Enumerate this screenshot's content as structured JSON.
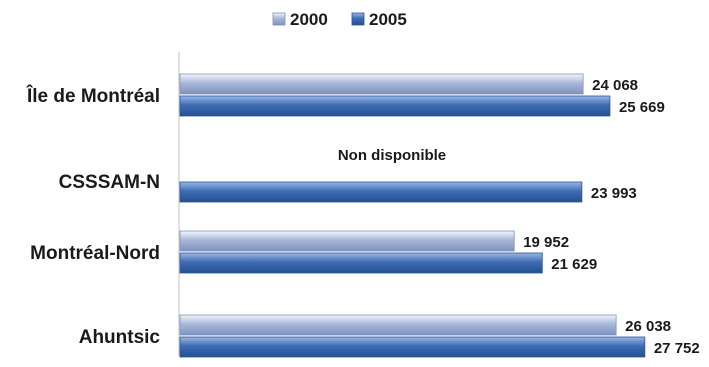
{
  "chart_data": {
    "type": "bar",
    "orientation": "horizontal",
    "categories": [
      "Île de Montréal",
      "CSSSAM-N",
      "Montréal-Nord",
      "Ahuntsic"
    ],
    "series": [
      {
        "name": "2000",
        "values": [
          24068,
          null,
          19952,
          26038
        ],
        "labels": [
          "24 068",
          "",
          "19 952",
          "26 038"
        ],
        "color": "#a9b8d8"
      },
      {
        "name": "2005",
        "values": [
          25669,
          23993,
          21629,
          27752
        ],
        "labels": [
          "25 669",
          "23 993",
          "21 629",
          "27 752"
        ],
        "color": "#3f6db3"
      }
    ],
    "annotations": [
      {
        "text": "Non disponible",
        "category": "CSSSAM-N",
        "series": "2000"
      }
    ],
    "xlim": [
      0,
      28000
    ],
    "legend_position": "top",
    "grid": false
  }
}
